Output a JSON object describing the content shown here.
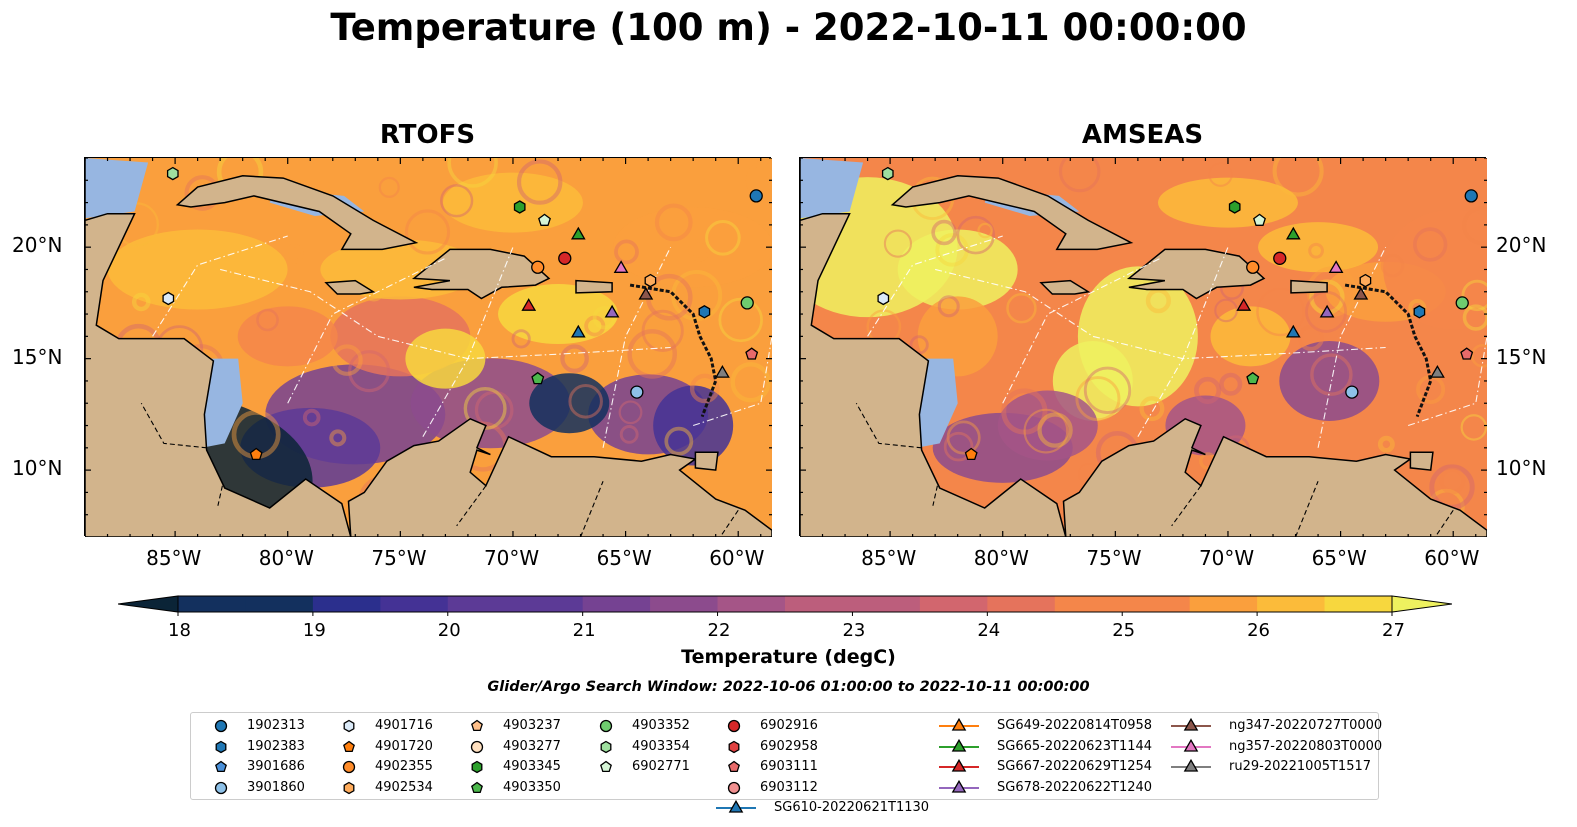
{
  "title": "Temperature (100 m) - 2022-10-11 00:00:00",
  "panels": [
    {
      "title": "RTOFS"
    },
    {
      "title": "AMSEAS"
    }
  ],
  "lon_ticks": [
    "85°W",
    "80°W",
    "75°W",
    "70°W",
    "65°W",
    "60°W"
  ],
  "lat_ticks": [
    "20°N",
    "15°N",
    "10°N"
  ],
  "map_extent": {
    "lon": [
      -89,
      -58.5
    ],
    "lat": [
      7,
      24
    ]
  },
  "colorbar": {
    "label": "Temperature (degC)",
    "ticks": [
      "18",
      "19",
      "20",
      "21",
      "22",
      "23",
      "24",
      "25",
      "26",
      "27"
    ],
    "range": [
      18,
      27
    ],
    "extend": "both"
  },
  "search_window": "Glider/Argo Search Window: 2022-10-06 01:00:00 to 2022-10-11 00:00:00",
  "colors": {
    "land": "#d2b48c",
    "shallow_water": "#97b6e1",
    "cmap": [
      "#0b2437",
      "#13305e",
      "#2b2f8d",
      "#443295",
      "#5c3a96",
      "#754292",
      "#8c4b8d",
      "#a55587",
      "#bc5e7c",
      "#d2666e",
      "#e5735c",
      "#f4864a",
      "#fa9f3d",
      "#fbbb3a",
      "#f7d73e",
      "#eef15f"
    ]
  },
  "legend": [
    {
      "label": "1902313",
      "marker": "circle",
      "color": "#1f77b4"
    },
    {
      "label": "1902383",
      "marker": "hexagon",
      "color": "#1f77b4"
    },
    {
      "label": "3901686",
      "marker": "pentagon",
      "color": "#4a90d9"
    },
    {
      "label": "3901860",
      "marker": "circle",
      "color": "#8ec1e8"
    },
    {
      "label": "4901716",
      "marker": "hexagon",
      "color": "#dbeaf8"
    },
    {
      "label": "4901720",
      "marker": "pentagon",
      "color": "#ff7f0e"
    },
    {
      "label": "4902355",
      "marker": "circle",
      "color": "#ff8c2a"
    },
    {
      "label": "4902534",
      "marker": "hexagon",
      "color": "#ffac5c"
    },
    {
      "label": "4903237",
      "marker": "pentagon",
      "color": "#ffc08a"
    },
    {
      "label": "4903277",
      "marker": "circle",
      "color": "#ffe0c0"
    },
    {
      "label": "4903345",
      "marker": "hexagon",
      "color": "#2ca02c"
    },
    {
      "label": "4903350",
      "marker": "pentagon",
      "color": "#4cb84c"
    },
    {
      "label": "4903352",
      "marker": "circle",
      "color": "#6fcc6f"
    },
    {
      "label": "4903354",
      "marker": "hexagon",
      "color": "#9fe09f"
    },
    {
      "label": "6902771",
      "marker": "pentagon",
      "color": "#d6f5d6"
    },
    {
      "label": "6902916",
      "marker": "circle",
      "color": "#d62728"
    },
    {
      "label": "6902958",
      "marker": "hexagon",
      "color": "#e04040"
    },
    {
      "label": "6903111",
      "marker": "pentagon",
      "color": "#e86a6a"
    },
    {
      "label": "6903112",
      "marker": "circle",
      "color": "#f09090"
    },
    {
      "label": "SG610-20220621T1130",
      "marker": "triangle-line",
      "color": "#1f77b4"
    },
    {
      "label": "SG649-20220814T0958",
      "marker": "triangle-line",
      "color": "#ff7f0e"
    },
    {
      "label": "SG665-20220623T1144",
      "marker": "triangle-line",
      "color": "#2ca02c"
    },
    {
      "label": "SG667-20220629T1254",
      "marker": "triangle-line",
      "color": "#d62728"
    },
    {
      "label": "SG678-20220622T1240",
      "marker": "triangle-line",
      "color": "#9467bd"
    },
    {
      "label": "ng347-20220727T0000",
      "marker": "triangle-line",
      "color": "#8c564b"
    },
    {
      "label": "ng357-20220803T0000",
      "marker": "triangle-line",
      "color": "#e377c2"
    },
    {
      "label": "ru29-20221005T1517",
      "marker": "triangle-line",
      "color": "#7f7f7f"
    }
  ],
  "platforms": [
    {
      "id": "4903354",
      "lon": -85.1,
      "lat": 23.3
    },
    {
      "id": "1902313",
      "lon": -59.2,
      "lat": 22.3
    },
    {
      "id": "4903345",
      "lon": -69.7,
      "lat": 21.8
    },
    {
      "id": "6902771",
      "lon": -68.6,
      "lat": 21.2
    },
    {
      "id": "SG665-20220623T1144",
      "lon": -67.1,
      "lat": 20.6
    },
    {
      "id": "6902916",
      "lon": -67.7,
      "lat": 19.5
    },
    {
      "id": "4902355",
      "lon": -68.9,
      "lat": 19.1
    },
    {
      "id": "ng357-20220803T0000",
      "lon": -65.2,
      "lat": 19.1
    },
    {
      "id": "4902534",
      "lon": -63.9,
      "lat": 18.5
    },
    {
      "id": "ng347-20220727T0000",
      "lon": -64.1,
      "lat": 17.9
    },
    {
      "id": "SG667-20220629T1254",
      "lon": -69.3,
      "lat": 17.4
    },
    {
      "id": "SG678-20220622T1240",
      "lon": -65.6,
      "lat": 17.1
    },
    {
      "id": "4901716",
      "lon": -85.3,
      "lat": 17.7
    },
    {
      "id": "SG610-20220621T1130",
      "lon": -67.1,
      "lat": 16.2
    },
    {
      "id": "1902383",
      "lon": -61.5,
      "lat": 17.1
    },
    {
      "id": "4903352",
      "lon": -59.6,
      "lat": 17.5
    },
    {
      "id": "6903111",
      "lon": -59.4,
      "lat": 15.2
    },
    {
      "id": "ru29-20221005T1517",
      "lon": -60.7,
      "lat": 14.4
    },
    {
      "id": "4903350",
      "lon": -68.9,
      "lat": 14.1
    },
    {
      "id": "3901860",
      "lon": -64.5,
      "lat": 13.5
    },
    {
      "id": "4901720",
      "lon": -81.4,
      "lat": 10.7
    }
  ]
}
